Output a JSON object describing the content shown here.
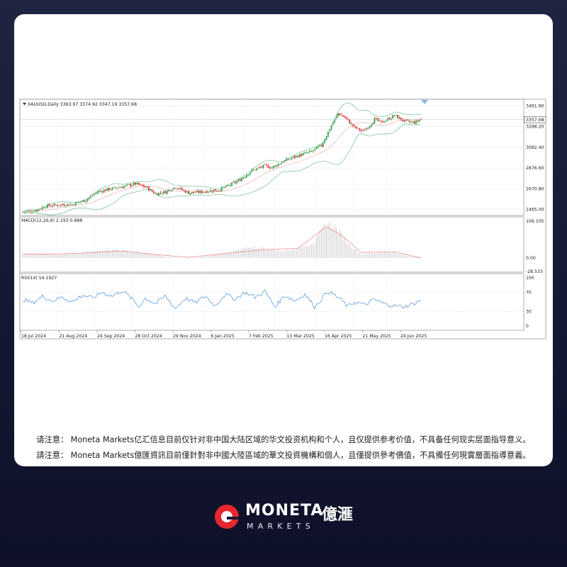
{
  "chart_data": [
    {
      "type": "candlestick",
      "title": "XAUUSD,Daily  3363.97 3374.92 3347.19 3357.68",
      "symbol": "XAUUSD",
      "timeframe": "Daily",
      "last_bar": {
        "open": 3363.97,
        "high": 3374.92,
        "low": 3347.19,
        "close": 3357.68
      },
      "current_price_label": "3357.68",
      "overlay": "Bollinger Bands",
      "y_ticks": [
        3491.9,
        3288.2,
        3082.4,
        2876.6,
        2670.8,
        2465.0
      ],
      "y_tick_labels": [
        "3491.90",
        "3288.20",
        "3082.40",
        "2876.60",
        "2670.80",
        "2465.00"
      ],
      "ylim": [
        2405,
        3560
      ],
      "x_tick_labels": [
        "18 Jul 2024",
        "21 Aug 2024",
        "24 Sep 2024",
        "28 Oct 2024",
        "29 Nov 2024",
        "6 Jan 2025",
        "7 Feb 2025",
        "13 Mar 2025",
        "16 Apr 2025",
        "21 May 2025",
        "24 Jun 2025"
      ],
      "close_path": {
        "x": [
          0,
          8,
          14,
          22,
          30,
          38,
          45,
          53,
          60,
          68,
          75,
          80,
          86,
          92,
          100,
          108,
          118,
          124,
          130,
          138,
          146,
          150,
          158,
          166,
          174,
          180,
          186,
          190,
          194,
          200,
          205,
          209,
          212,
          216,
          220,
          224,
          230,
          236,
          240
        ],
        "y": [
          2440,
          2455,
          2500,
          2510,
          2515,
          2560,
          2640,
          2670,
          2690,
          2720,
          2680,
          2620,
          2640,
          2690,
          2630,
          2640,
          2660,
          2700,
          2750,
          2850,
          2900,
          2880,
          2950,
          3000,
          3040,
          3100,
          3300,
          3420,
          3380,
          3280,
          3240,
          3300,
          3360,
          3330,
          3360,
          3400,
          3340,
          3330,
          3357.68
        ]
      },
      "grid": true
    },
    {
      "type": "bar",
      "indicator": "MACD",
      "title": "MACD(12,26,9) 2.193 0.888",
      "y_tick_labels": [
        "106.105",
        "0.00",
        "-28.533"
      ],
      "ylim": [
        -28.533,
        106.105
      ],
      "histogram_path": {
        "x": [
          0,
          10,
          20,
          30,
          40,
          50,
          60,
          70,
          80,
          86,
          96,
          106,
          114,
          124,
          136,
          146,
          156,
          166,
          176,
          183,
          188,
          192,
          196,
          204,
          214,
          224,
          230,
          240
        ],
        "y": [
          14,
          12,
          10,
          12,
          16,
          26,
          24,
          18,
          10,
          4,
          0,
          2,
          8,
          16,
          32,
          30,
          20,
          28,
          48,
          104,
          92,
          70,
          42,
          12,
          16,
          16,
          8,
          2
        ]
      },
      "signal_path": {
        "x": [
          0,
          20,
          40,
          60,
          80,
          100,
          124,
          146,
          166,
          183,
          192,
          204,
          224,
          240
        ],
        "y": [
          12,
          11,
          15,
          20,
          10,
          2,
          14,
          24,
          28,
          90,
          66,
          16,
          18,
          0
        ]
      }
    },
    {
      "type": "line",
      "indicator": "RSI",
      "title": "RSI(14) 54.1927",
      "y_tick_labels": [
        "100",
        "70",
        "30",
        "0"
      ],
      "levels": [
        70,
        30
      ],
      "ylim": [
        0,
        100
      ],
      "series": [
        {
          "x": [
            0,
            6,
            12,
            18,
            24,
            30,
            36,
            42,
            48,
            54,
            60,
            66,
            70,
            74,
            80,
            86,
            92,
            98,
            104,
            110,
            116,
            122,
            128,
            134,
            140,
            146,
            152,
            158,
            164,
            170,
            176,
            180,
            184,
            188,
            192,
            196,
            200,
            206,
            212,
            218,
            224,
            230,
            236,
            240
          ],
          "y": [
            55,
            48,
            62,
            52,
            60,
            50,
            64,
            58,
            70,
            62,
            74,
            56,
            40,
            58,
            46,
            62,
            36,
            58,
            48,
            62,
            42,
            66,
            56,
            70,
            60,
            72,
            40,
            64,
            52,
            66,
            40,
            56,
            72,
            64,
            54,
            40,
            50,
            44,
            55,
            46,
            42,
            40,
            47,
            54.19
          ]
        }
      ]
    }
  ],
  "notice": {
    "line1": "请注意： Moneta Markets亿汇信息目前仅针对非中国大陆区域的华文投资机构和个人，且仅提供参考价值，不具备任何现实层面指导意义。",
    "line2": "請注意： Moneta Markets億匯資訊目前僅針對非中國大陸區域的華文投資機構和個人，且僅提供參考價值，不具備任何現實層面指導意義。"
  },
  "brand": {
    "wordmark": "MONETA",
    "chinese": "億滙",
    "sub": "MARKETS",
    "accent": "#e8262f"
  },
  "colors": {
    "bull": "#2ea043",
    "bear": "#e8262f",
    "bands": "#6fbf8e",
    "macd_hist": "#c9c9c9",
    "macd_signal": "#f08080",
    "rsi_line": "#4a90d9"
  }
}
